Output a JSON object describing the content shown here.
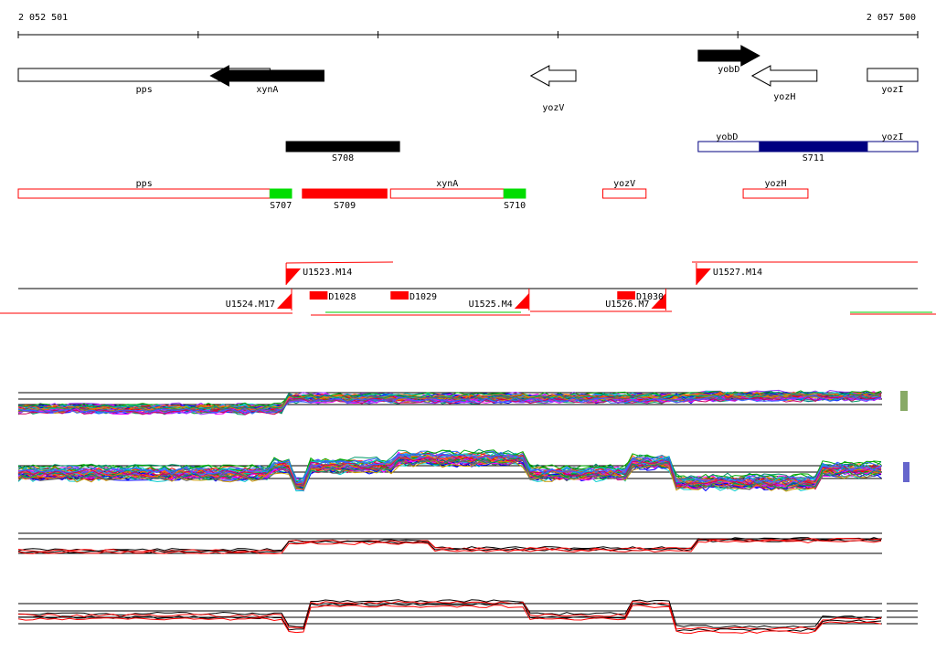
{
  "ruler": {
    "start_label": "2 052 501",
    "end_label": "2 057 500",
    "start": 2052501,
    "end": 2057500
  },
  "genes": [
    {
      "id": "pps",
      "label": "pps",
      "start": 2052501,
      "end": 2053900,
      "strand": "none",
      "fill": "#ffffff"
    },
    {
      "id": "xynA",
      "label": "xynA",
      "start": 2053570,
      "end": 2054200,
      "strand": "-",
      "fill": "#000000"
    },
    {
      "id": "yozV",
      "label": "yozV",
      "start": 2055350,
      "end": 2055600,
      "strand": "-",
      "fill": "#ffffff"
    },
    {
      "id": "yobD",
      "label": "yobD",
      "start": 2056280,
      "end": 2056620,
      "strand": "+",
      "fill": "#000000"
    },
    {
      "id": "yozH",
      "label": "yozH",
      "start": 2056580,
      "end": 2056940,
      "strand": "-",
      "fill": "#ffffff"
    },
    {
      "id": "yozI",
      "label": "yozI",
      "start": 2057220,
      "end": 2057500,
      "strand": "none",
      "fill": "#ffffff"
    }
  ],
  "operons": [
    {
      "id": "S708",
      "label": "S708",
      "start": 2053990,
      "end": 2054620,
      "fill": "#000000",
      "stroke": "#000000"
    },
    {
      "id": "S711-frame",
      "label": "",
      "start": 2056280,
      "end": 2057500,
      "fill": "#ffffff",
      "stroke": "#000080"
    },
    {
      "id": "S711",
      "label": "S711",
      "start": 2056620,
      "end": 2057220,
      "fill": "#000080",
      "stroke": "#000080"
    }
  ],
  "operon_inner_labels": [
    {
      "label": "yobD",
      "pos": 2056440
    },
    {
      "label": "yozI",
      "pos": 2057360
    }
  ],
  "segments": [
    {
      "id": "pps",
      "label": "pps",
      "start": 2052501,
      "end": 2053900,
      "fill": "#ffffff",
      "stroke": "#ff0000",
      "label_pos": "above"
    },
    {
      "id": "S707",
      "label": "S707",
      "start": 2053900,
      "end": 2054020,
      "fill": "#00dd00",
      "stroke": "#00dd00",
      "label_pos": "below"
    },
    {
      "id": "S709",
      "label": "S709",
      "start": 2054080,
      "end": 2054550,
      "fill": "#ff0000",
      "stroke": "#ff0000",
      "label_pos": "below"
    },
    {
      "id": "xynA",
      "label": "xynA",
      "start": 2054570,
      "end": 2055200,
      "fill": "#ffffff",
      "stroke": "#ff0000",
      "label_pos": "above"
    },
    {
      "id": "S710",
      "label": "S710",
      "start": 2055200,
      "end": 2055320,
      "fill": "#00dd00",
      "stroke": "#00dd00",
      "label_pos": "below"
    },
    {
      "id": "yozV",
      "label": "yozV",
      "start": 2055750,
      "end": 2055990,
      "fill": "#ffffff",
      "stroke": "#ff0000",
      "label_pos": "above"
    },
    {
      "id": "yozH",
      "label": "yozH",
      "start": 2056530,
      "end": 2056890,
      "fill": "#ffffff",
      "stroke": "#ff0000",
      "label_pos": "above"
    }
  ],
  "tus": [
    {
      "label": "U1523.M14",
      "pos": 2053990,
      "dir": "up"
    },
    {
      "label": "U1524.M17",
      "pos": 2054020,
      "dir": "down"
    },
    {
      "label": "U1525.M4",
      "pos": 2055340,
      "dir": "down"
    },
    {
      "label": "U1526.M7",
      "pos": 2056100,
      "dir": "down"
    },
    {
      "label": "U1527.M14",
      "pos": 2056270,
      "dir": "up"
    }
  ],
  "tu_marks": [
    {
      "label": "D1028",
      "start": 2054120,
      "end": 2054220
    },
    {
      "label": "D1029",
      "start": 2054570,
      "end": 2054670
    },
    {
      "label": "D1030",
      "start": 2055830,
      "end": 2055930
    }
  ]
}
